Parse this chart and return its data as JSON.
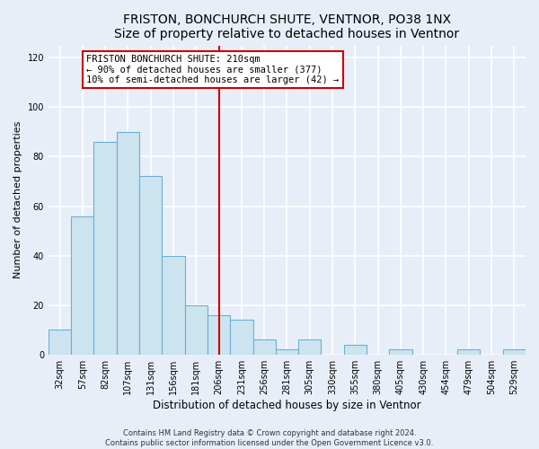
{
  "title": "FRISTON, BONCHURCH SHUTE, VENTNOR, PO38 1NX",
  "subtitle": "Size of property relative to detached houses in Ventnor",
  "xlabel": "Distribution of detached houses by size in Ventnor",
  "ylabel": "Number of detached properties",
  "bar_labels": [
    "32sqm",
    "57sqm",
    "82sqm",
    "107sqm",
    "131sqm",
    "156sqm",
    "181sqm",
    "206sqm",
    "231sqm",
    "256sqm",
    "281sqm",
    "305sqm",
    "330sqm",
    "355sqm",
    "380sqm",
    "405sqm",
    "430sqm",
    "454sqm",
    "479sqm",
    "504sqm",
    "529sqm"
  ],
  "bar_values": [
    10,
    56,
    86,
    90,
    72,
    40,
    20,
    16,
    14,
    6,
    2,
    6,
    0,
    4,
    0,
    2,
    0,
    0,
    2,
    0,
    2
  ],
  "bar_color": "#cce4f0",
  "bar_edge_color": "#6ab0d4",
  "vline_x": 7.0,
  "vline_color": "#cc0000",
  "annotation_box_title": "FRISTON BONCHURCH SHUTE: 210sqm",
  "annotation_line1": "← 90% of detached houses are smaller (377)",
  "annotation_line2": "10% of semi-detached houses are larger (42) →",
  "ylim": [
    0,
    125
  ],
  "yticks": [
    0,
    20,
    40,
    60,
    80,
    100,
    120
  ],
  "footer_line1": "Contains HM Land Registry data © Crown copyright and database right 2024.",
  "footer_line2": "Contains public sector information licensed under the Open Government Licence v3.0.",
  "bg_color": "#e8eef8",
  "plot_bg_color": "#e8eef8",
  "grid_color": "#ffffff",
  "title_fontsize": 10,
  "subtitle_fontsize": 9,
  "xlabel_fontsize": 8.5,
  "ylabel_fontsize": 8,
  "tick_fontsize": 7,
  "annot_fontsize": 7.5,
  "footer_fontsize": 6
}
